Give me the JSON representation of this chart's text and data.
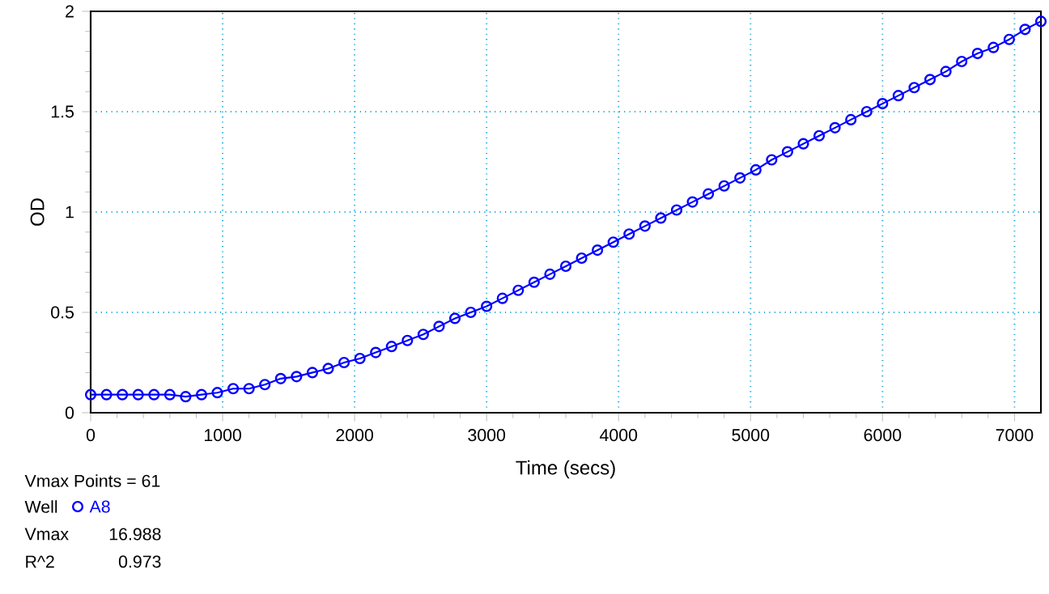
{
  "chart_data": {
    "type": "line",
    "xlabel": "Time (secs)",
    "ylabel": "OD",
    "x": [
      0,
      120,
      240,
      360,
      480,
      600,
      720,
      840,
      960,
      1080,
      1200,
      1320,
      1440,
      1560,
      1680,
      1800,
      1920,
      2040,
      2160,
      2280,
      2400,
      2520,
      2640,
      2760,
      2880,
      3000,
      3120,
      3240,
      3360,
      3480,
      3600,
      3720,
      3840,
      3960,
      4080,
      4200,
      4320,
      4440,
      4560,
      4680,
      4800,
      4920,
      5040,
      5160,
      5280,
      5400,
      5520,
      5640,
      5760,
      5880,
      6000,
      6120,
      6240,
      6360,
      6480,
      6600,
      6720,
      6840,
      6960,
      7080,
      7200
    ],
    "series": [
      {
        "name": "A8",
        "color": "#0000ff",
        "values": [
          0.09,
          0.09,
          0.09,
          0.09,
          0.09,
          0.09,
          0.08,
          0.09,
          0.1,
          0.12,
          0.12,
          0.14,
          0.17,
          0.18,
          0.2,
          0.22,
          0.25,
          0.27,
          0.3,
          0.33,
          0.36,
          0.39,
          0.43,
          0.47,
          0.5,
          0.53,
          0.57,
          0.61,
          0.65,
          0.69,
          0.73,
          0.77,
          0.81,
          0.85,
          0.89,
          0.93,
          0.97,
          1.01,
          1.05,
          1.09,
          1.13,
          1.17,
          1.21,
          1.26,
          1.3,
          1.34,
          1.38,
          1.42,
          1.46,
          1.5,
          1.54,
          1.58,
          1.62,
          1.66,
          1.7,
          1.75,
          1.79,
          1.82,
          1.86,
          1.91,
          1.95
        ]
      }
    ],
    "xlim": [
      0,
      7200
    ],
    "ylim": [
      0,
      2
    ],
    "xticks": [
      0,
      1000,
      2000,
      3000,
      4000,
      5000,
      6000,
      7000
    ],
    "yticks": [
      0,
      0.5,
      1,
      1.5,
      2
    ],
    "grid": true,
    "marker": "circle",
    "line_style": "solid",
    "legend": "bottom left",
    "legend_title": "Well",
    "annotations": [
      "Vmax Points = 61",
      "Vmax",
      "16.988",
      "R^2",
      "0.973"
    ]
  }
}
